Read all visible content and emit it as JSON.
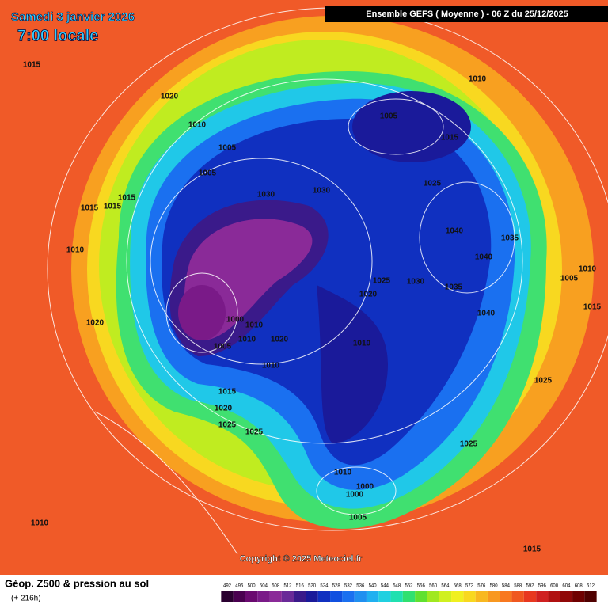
{
  "header": {
    "date": "Samedi 3 janvier 2026",
    "time": "7:00 locale",
    "model": "Ensemble GEFS  ( Moyenne )  -  06 Z du 25/12/2025"
  },
  "isobars": [
    1015,
    1020,
    1010,
    1005,
    1005,
    1030,
    1030,
    1005,
    1015,
    1025,
    1010,
    1040,
    1035,
    1040,
    1005,
    1010,
    1015,
    1035,
    1030,
    1025,
    1020,
    1040,
    1010,
    1000,
    1010,
    1010,
    1020,
    1005,
    1010,
    1015,
    1015,
    1015,
    1010,
    1020,
    1015,
    1020,
    1025,
    1025,
    1025,
    1025,
    1010,
    1000,
    1000,
    1005,
    1010,
    1015
  ],
  "copyright": "Copyright © 2025 Meteociel.fr",
  "legend": {
    "title": "Géop. Z500 & pression au sol",
    "lead": "(+ 216h)",
    "scale": [
      492,
      496,
      500,
      504,
      508,
      512,
      516,
      520,
      524,
      528,
      532,
      536,
      540,
      544,
      548,
      552,
      556,
      560,
      564,
      568,
      572,
      576,
      580,
      584,
      588,
      592,
      596,
      600,
      604,
      608,
      612
    ],
    "colors": [
      "#2a0030",
      "#4a0050",
      "#6a0a70",
      "#7a1a88",
      "#8a2a98",
      "#6a2a98",
      "#3a1a8a",
      "#1a1a9a",
      "#1030c0",
      "#1050e0",
      "#1a70f0",
      "#2090f0",
      "#20b0f0",
      "#20d0e0",
      "#20e0b0",
      "#30e070",
      "#60e030",
      "#a0e820",
      "#d0f020",
      "#f0f020",
      "#f8d820",
      "#f8b820",
      "#f89820",
      "#f87820",
      "#f05820",
      "#e83820",
      "#d02020",
      "#b01010",
      "#900808",
      "#700000",
      "#500000"
    ]
  }
}
